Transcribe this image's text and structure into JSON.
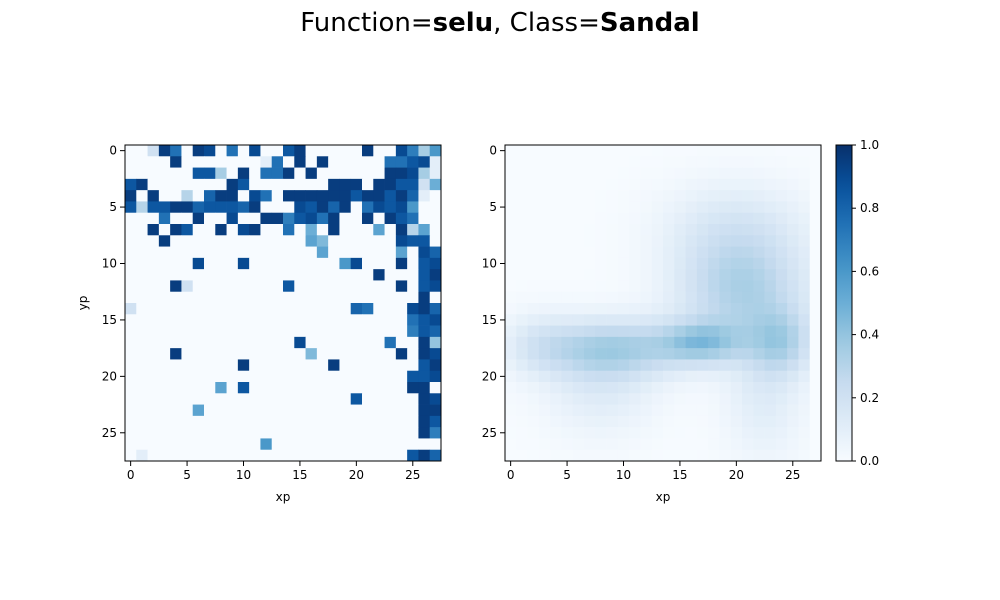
{
  "figure": {
    "title_prefix1": "Function=",
    "function_name": "selu",
    "title_mid": ", Class=",
    "class_name": "Sandal"
  },
  "chart_data": [
    {
      "type": "heatmap",
      "title": "",
      "xlabel": "xp",
      "ylabel": "yp",
      "xlim": [
        -0.5,
        27.5
      ],
      "ylim": [
        27.5,
        -0.5
      ],
      "xticks": [
        "0",
        "5",
        "10",
        "15",
        "20",
        "25"
      ],
      "yticks": [
        "0",
        "5",
        "10",
        "15",
        "20",
        "25"
      ],
      "colormap": "Blues",
      "vmin": 0,
      "vmax": 1,
      "values": [
        [
          0,
          0,
          0.2,
          0.95,
          0.75,
          0,
          0.95,
          0.9,
          0,
          0.75,
          0,
          0.9,
          0,
          0,
          0.85,
          0.95,
          0,
          0,
          0,
          0,
          0,
          0.95,
          0,
          0,
          0.9,
          0.7,
          0.35,
          0.6
        ],
        [
          0,
          0,
          0,
          0,
          0.95,
          0,
          0,
          0,
          0,
          0,
          0,
          0,
          0.1,
          0.75,
          0,
          0.95,
          0,
          0.95,
          0,
          0,
          0,
          0,
          0,
          0.75,
          0.75,
          0.85,
          0.9,
          0.1
        ],
        [
          0,
          0,
          0,
          0,
          0,
          0,
          0.85,
          0.85,
          0.35,
          0,
          0.95,
          0,
          0.75,
          0.75,
          0.95,
          0,
          0.95,
          0,
          0,
          0,
          0,
          0,
          0,
          0.95,
          0.95,
          0.9,
          0.35,
          0.1
        ],
        [
          0.85,
          0.95,
          0,
          0,
          0,
          0,
          0,
          0,
          0,
          0.95,
          0.85,
          0,
          0,
          0,
          0,
          0,
          0,
          0,
          0.95,
          0.95,
          0.95,
          0,
          0.95,
          0.95,
          0.85,
          0.85,
          0.2,
          0.5
        ],
        [
          0.95,
          0,
          0.95,
          0,
          0,
          0.3,
          0,
          0.8,
          0.95,
          0.95,
          0,
          0.9,
          0.75,
          0,
          0.95,
          0.95,
          0.95,
          0.95,
          0.95,
          0.95,
          0.85,
          0.95,
          0.95,
          0.85,
          0.95,
          0.8,
          0.1,
          0
        ],
        [
          0.85,
          0.3,
          0.85,
          0.85,
          0.95,
          0.95,
          0.8,
          0.85,
          0.85,
          0.85,
          0.8,
          0.95,
          0,
          0,
          0,
          0.9,
          0.85,
          0.95,
          0.8,
          0.95,
          0,
          0.75,
          0.9,
          0.85,
          0.9,
          0.6,
          0,
          0
        ],
        [
          0,
          0,
          0,
          0.75,
          0,
          0,
          0.95,
          0,
          0,
          0.9,
          0,
          0,
          0.95,
          0.95,
          0.7,
          0.85,
          0.9,
          0.75,
          0.95,
          0,
          0,
          0.95,
          0,
          0.95,
          0.85,
          0.75,
          0,
          0
        ],
        [
          0,
          0,
          0.95,
          0,
          0.95,
          0.85,
          0,
          0,
          0.95,
          0,
          0.9,
          0.95,
          0,
          0,
          0.75,
          0,
          0.5,
          0,
          0.95,
          0,
          0,
          0,
          0.55,
          0,
          0.95,
          0.3,
          0.55,
          0
        ],
        [
          0,
          0,
          0,
          0.95,
          0,
          0,
          0,
          0,
          0,
          0,
          0,
          0,
          0,
          0,
          0,
          0,
          0.55,
          0.45,
          0,
          0,
          0,
          0,
          0,
          0,
          0.9,
          0.85,
          0.85,
          0
        ],
        [
          0,
          0,
          0,
          0,
          0,
          0,
          0,
          0,
          0,
          0,
          0,
          0,
          0,
          0,
          0,
          0,
          0,
          0.55,
          0,
          0,
          0,
          0,
          0,
          0,
          0.55,
          0,
          0.9,
          0.8
        ],
        [
          0,
          0,
          0,
          0,
          0,
          0,
          0.9,
          0,
          0,
          0,
          0.9,
          0,
          0,
          0,
          0,
          0,
          0,
          0,
          0,
          0.6,
          0.9,
          0,
          0,
          0,
          0.95,
          0,
          0.85,
          0.9
        ],
        [
          0,
          0,
          0,
          0,
          0,
          0,
          0,
          0,
          0,
          0,
          0,
          0,
          0,
          0,
          0,
          0,
          0,
          0,
          0,
          0,
          0,
          0,
          0.95,
          0,
          0,
          0,
          0.85,
          0.95
        ],
        [
          0,
          0,
          0,
          0,
          0.95,
          0.2,
          0,
          0,
          0,
          0,
          0,
          0,
          0,
          0,
          0.85,
          0,
          0,
          0,
          0,
          0,
          0,
          0,
          0,
          0,
          0.95,
          0,
          0.85,
          0.9
        ],
        [
          0,
          0,
          0,
          0,
          0,
          0,
          0,
          0,
          0,
          0,
          0,
          0,
          0,
          0,
          0,
          0,
          0,
          0,
          0,
          0,
          0,
          0,
          0,
          0,
          0,
          0,
          0.95,
          0
        ],
        [
          0.2,
          0,
          0,
          0,
          0,
          0,
          0,
          0,
          0,
          0,
          0,
          0,
          0,
          0,
          0,
          0,
          0,
          0,
          0,
          0,
          0.8,
          0.75,
          0,
          0,
          0,
          0.9,
          0.95,
          0.8
        ],
        [
          0,
          0,
          0,
          0,
          0,
          0,
          0,
          0,
          0,
          0,
          0,
          0,
          0,
          0,
          0,
          0,
          0,
          0,
          0,
          0,
          0,
          0,
          0,
          0,
          0,
          0.75,
          0.85,
          0.9
        ],
        [
          0,
          0,
          0,
          0,
          0,
          0,
          0,
          0,
          0,
          0,
          0,
          0,
          0,
          0,
          0,
          0,
          0,
          0,
          0,
          0,
          0,
          0,
          0,
          0,
          0,
          0.7,
          0.85,
          0.8
        ],
        [
          0,
          0,
          0,
          0,
          0,
          0,
          0,
          0,
          0,
          0,
          0,
          0,
          0,
          0,
          0,
          0.9,
          0,
          0,
          0,
          0,
          0,
          0,
          0,
          0.75,
          0,
          0,
          0.95,
          0.4
        ],
        [
          0,
          0,
          0,
          0,
          0.95,
          0,
          0,
          0,
          0,
          0,
          0,
          0,
          0,
          0,
          0,
          0,
          0.45,
          0,
          0,
          0,
          0,
          0,
          0,
          0,
          0.95,
          0,
          0.95,
          0.9
        ],
        [
          0,
          0,
          0,
          0,
          0,
          0,
          0,
          0,
          0,
          0,
          0.95,
          0,
          0,
          0,
          0,
          0,
          0,
          0,
          0.95,
          0,
          0,
          0,
          0,
          0,
          0,
          0,
          0.85,
          0.95
        ],
        [
          0,
          0,
          0,
          0,
          0,
          0,
          0,
          0,
          0,
          0,
          0,
          0,
          0,
          0,
          0,
          0,
          0,
          0,
          0,
          0,
          0,
          0,
          0,
          0,
          0,
          0.85,
          0.85,
          0.9
        ],
        [
          0,
          0,
          0,
          0,
          0,
          0,
          0,
          0,
          0.55,
          0,
          0.85,
          0,
          0,
          0,
          0,
          0,
          0,
          0,
          0,
          0,
          0,
          0,
          0,
          0,
          0,
          0.95,
          0.95,
          0
        ],
        [
          0,
          0,
          0,
          0,
          0,
          0,
          0,
          0,
          0,
          0,
          0,
          0,
          0,
          0,
          0,
          0,
          0,
          0,
          0,
          0,
          0.85,
          0,
          0,
          0,
          0,
          0,
          0.95,
          0.9
        ],
        [
          0,
          0,
          0,
          0,
          0,
          0,
          0.55,
          0,
          0,
          0,
          0,
          0,
          0,
          0,
          0,
          0,
          0,
          0,
          0,
          0,
          0,
          0,
          0,
          0,
          0,
          0,
          0.95,
          0.95
        ],
        [
          0,
          0,
          0,
          0,
          0,
          0,
          0,
          0,
          0,
          0,
          0,
          0,
          0,
          0,
          0,
          0,
          0,
          0,
          0,
          0,
          0,
          0,
          0,
          0,
          0,
          0,
          0.95,
          0.85
        ],
        [
          0,
          0,
          0,
          0,
          0,
          0,
          0,
          0,
          0,
          0,
          0,
          0,
          0,
          0,
          0,
          0,
          0,
          0,
          0,
          0,
          0,
          0,
          0,
          0,
          0,
          0,
          0.95,
          0.7
        ],
        [
          0,
          0,
          0,
          0,
          0,
          0,
          0,
          0,
          0,
          0,
          0,
          0,
          0.6,
          0,
          0,
          0,
          0,
          0,
          0,
          0,
          0,
          0,
          0,
          0,
          0,
          0,
          0,
          0
        ],
        [
          0,
          0.1,
          0,
          0,
          0,
          0,
          0,
          0,
          0,
          0,
          0,
          0,
          0,
          0,
          0,
          0,
          0,
          0,
          0,
          0,
          0,
          0,
          0,
          0,
          0,
          0.85,
          0.95,
          0.8
        ]
      ]
    },
    {
      "type": "heatmap",
      "title": "",
      "xlabel": "xp",
      "ylabel": "",
      "xlim": [
        -0.5,
        27.5
      ],
      "ylim": [
        27.5,
        -0.5
      ],
      "xticks": [
        "0",
        "5",
        "10",
        "15",
        "20",
        "25"
      ],
      "yticks": [
        "0",
        "5",
        "10",
        "15",
        "20",
        "25"
      ],
      "colormap": "Blues",
      "vmin": 0,
      "vmax": 1,
      "blobs": [
        {
          "cx": 20.5,
          "cy": 12.5,
          "sx": 4.0,
          "sy": 3.2,
          "amp": 0.3
        },
        {
          "cx": 20.0,
          "cy": 7.0,
          "sx": 4.5,
          "sy": 3.0,
          "amp": 0.15
        },
        {
          "cx": 17.0,
          "cy": 17.0,
          "sx": 2.5,
          "sy": 1.3,
          "amp": 0.3
        },
        {
          "cx": 24.0,
          "cy": 17.0,
          "sx": 2.0,
          "sy": 2.0,
          "amp": 0.25
        },
        {
          "cx": 9.0,
          "cy": 17.5,
          "sx": 5.0,
          "sy": 1.8,
          "amp": 0.32
        },
        {
          "cx": 8.0,
          "cy": 21.0,
          "sx": 3.5,
          "sy": 3.0,
          "amp": 0.12
        },
        {
          "cx": 22.5,
          "cy": 21.5,
          "sx": 2.5,
          "sy": 4.0,
          "amp": 0.12
        },
        {
          "cx": 2.5,
          "cy": 17.0,
          "sx": 2.0,
          "sy": 2.0,
          "amp": 0.08
        }
      ]
    }
  ],
  "colorbar": {
    "ticks": [
      "0.0",
      "0.2",
      "0.4",
      "0.6",
      "0.8",
      "1.0"
    ],
    "vmin": 0,
    "vmax": 1
  }
}
